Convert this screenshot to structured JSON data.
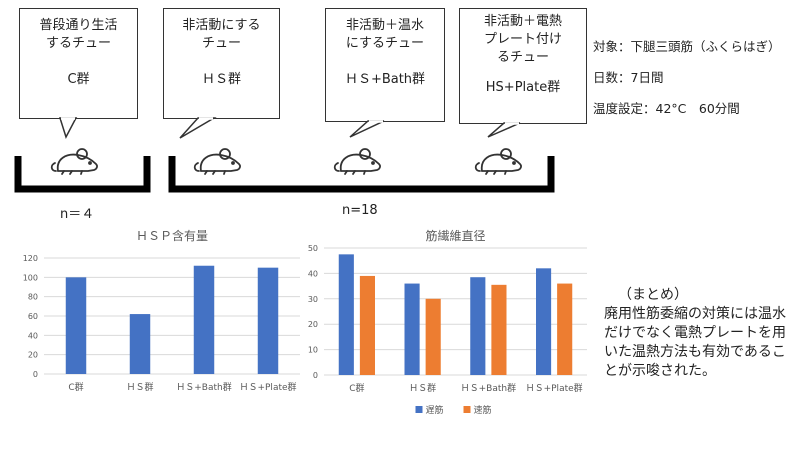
{
  "groups": [
    {
      "line1": "普段通り生活",
      "line2": "するチュー",
      "label": "C群"
    },
    {
      "line1": "非活動にする",
      "line2": "チュー",
      "label": "ＨＳ群"
    },
    {
      "line1": "非活動＋温水",
      "line2": "にするチュー",
      "label": "ＨＳ+Bath群"
    },
    {
      "line1": "非活動＋電熱",
      "line2": "プレート付け",
      "line3": "るチュー",
      "label": "HS+Plate群"
    }
  ],
  "counts": {
    "control": "n＝４",
    "treated": "n=18"
  },
  "info": {
    "target": "対象：下腿三頭筋（ふくらはぎ）",
    "days": "日数：7日間",
    "temp": "温度設定：42°C　60分間"
  },
  "summary": {
    "heading": "（まとめ）",
    "body": "廃用性筋委縮の対策には温水だけでなく電熱プレートを用いた温熱方法も有効であることが示唆された。"
  },
  "colors": {
    "blue": "#4472C4",
    "orange": "#ED7D31",
    "grid": "#d9d9d9",
    "axis": "#595959"
  },
  "icons": {
    "mouse": "mouse-icon"
  },
  "chart_data": [
    {
      "type": "bar",
      "title": "ＨＳＰ含有量",
      "categories": [
        "C群",
        "ＨＳ群",
        "ＨＳ+Bath群",
        "ＨＳ+Plate群"
      ],
      "values": [
        100,
        62,
        112,
        110
      ],
      "ylim": [
        0,
        120
      ],
      "yticks": [
        0,
        20,
        40,
        60,
        80,
        100,
        120
      ],
      "grid": true,
      "legend": "none"
    },
    {
      "type": "bar",
      "title": "筋繊維直径",
      "categories": [
        "C群",
        "ＨＳ群",
        "ＨＳ+Bath群",
        "ＨＳ+Plate群"
      ],
      "series": [
        {
          "name": "遅筋",
          "values": [
            47.5,
            36,
            38.5,
            42
          ],
          "color": "#4472C4"
        },
        {
          "name": "速筋",
          "values": [
            39,
            30,
            35.5,
            36
          ],
          "color": "#ED7D31"
        }
      ],
      "ylim": [
        0,
        50
      ],
      "yticks": [
        0,
        10,
        20,
        30,
        40,
        50
      ],
      "grid": true,
      "legend": "bottom"
    }
  ]
}
